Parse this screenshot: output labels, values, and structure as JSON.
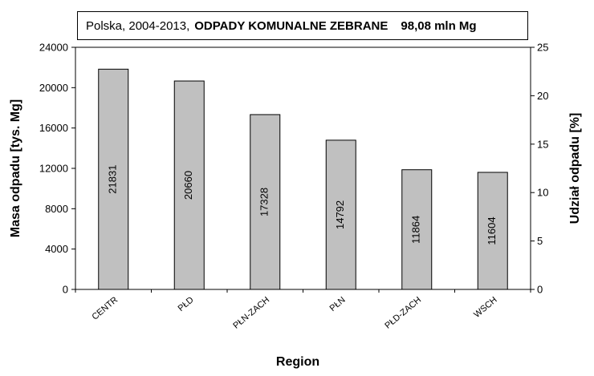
{
  "title": {
    "prefix": "Polska, 2004-2013,",
    "main": "ODPADY KOMUNALNE ZEBRANE",
    "total": "98,08 mln Mg"
  },
  "chart_data": {
    "type": "bar",
    "categories": [
      "CENTR",
      "PŁD",
      "PŁN-ZACH",
      "PŁN",
      "PŁD-ZACH",
      "WSCH"
    ],
    "values": [
      21831,
      20660,
      17328,
      14792,
      11864,
      11604
    ],
    "data_labels": [
      "21831",
      "20660",
      "17328",
      "14792",
      "11864",
      "11604"
    ],
    "xlabel": "Region",
    "ylabel": "Masa odpadu  [tys. Mg]",
    "ylabel_right": "Udział odpadu  [%]",
    "ylim": [
      0,
      24000
    ],
    "y_ticks": [
      "0",
      "4000",
      "8000",
      "12000",
      "16000",
      "20000",
      "24000"
    ],
    "ylim_right": [
      0,
      25
    ],
    "y_ticks_right": [
      "0",
      "5",
      "10",
      "15",
      "20",
      "25"
    ],
    "grid": false,
    "legend": "none",
    "bar_color": "#c0c0c0",
    "bar_edge_color": "#000000"
  }
}
